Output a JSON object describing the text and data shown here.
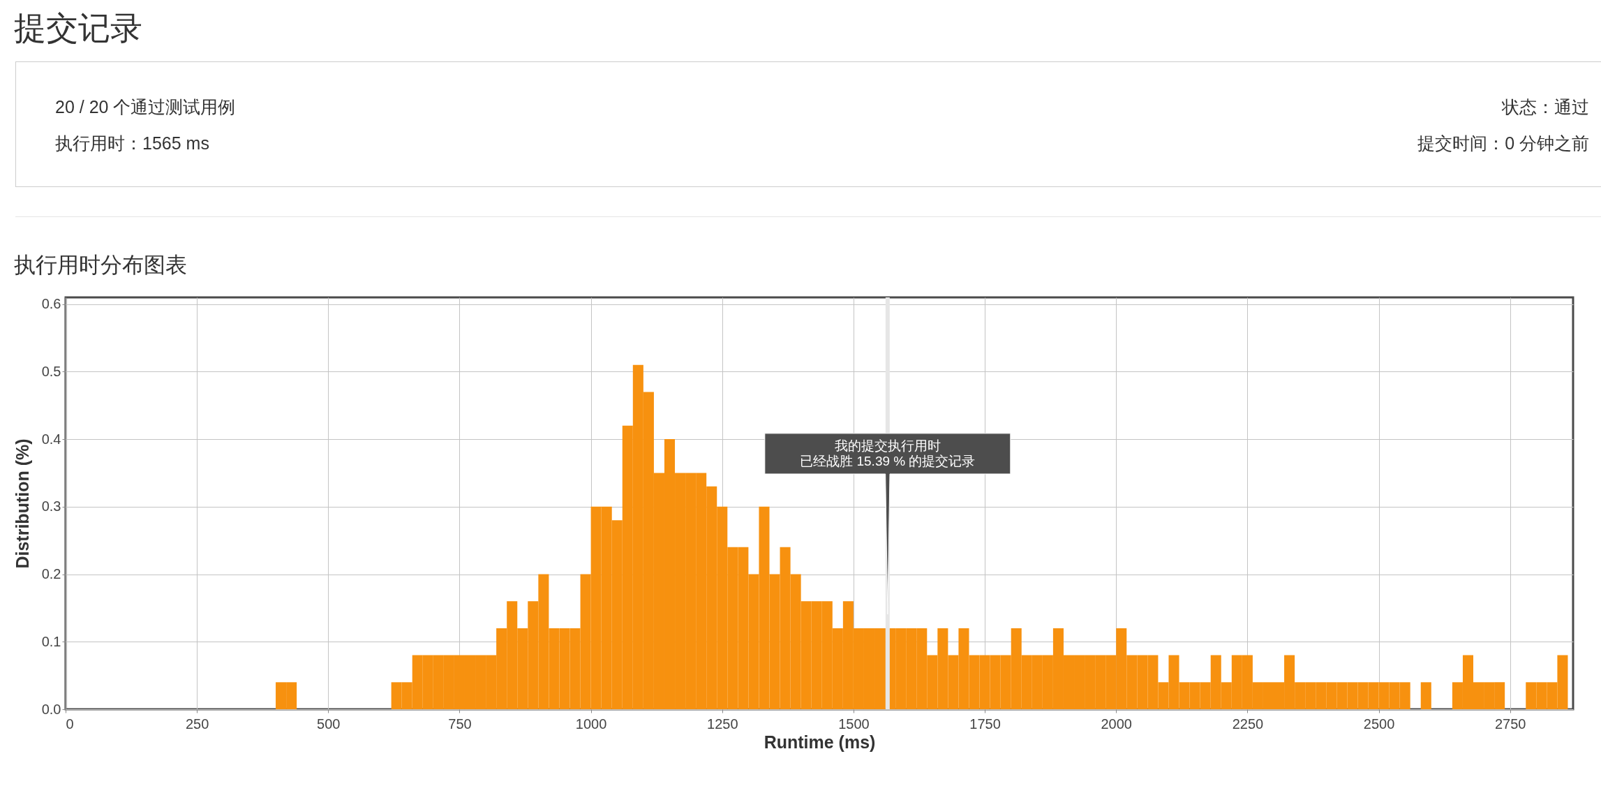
{
  "chart_data": {
    "type": "histogram",
    "title": "执行用时分布图表",
    "xlabel": "Runtime (ms)",
    "ylabel": "Distribution (%)",
    "color": "#f7910f",
    "bins": [
      400,
      420,
      440,
      460,
      480,
      500,
      520,
      540,
      560,
      580,
      600,
      620,
      640,
      660,
      680,
      700,
      720,
      740,
      760,
      780,
      800,
      820,
      840,
      860,
      880,
      900,
      920,
      940,
      960,
      980,
      1000,
      1020,
      1040,
      1060,
      1080,
      1100,
      1120,
      1140,
      1160,
      1180,
      1200,
      1220,
      1240,
      1260,
      1280,
      1300,
      1320,
      1340,
      1360,
      1380,
      1400,
      1420,
      1440,
      1460,
      1480,
      1500,
      1520,
      1540,
      1560,
      1580,
      1600,
      1620,
      1640,
      1660,
      1680,
      1700,
      1720,
      1740,
      1760,
      1780,
      1800,
      1820,
      1840,
      1860,
      1880,
      1900,
      1920,
      1940,
      1960,
      1980,
      2000,
      2020,
      2040,
      2060,
      2080,
      2100,
      2120,
      2140,
      2160,
      2180,
      2200,
      2220,
      2240,
      2260,
      2280,
      2300,
      2320,
      2340,
      2360,
      2380,
      2400,
      2420,
      2440,
      2460,
      2480,
      2500,
      2520,
      2540,
      2560,
      2580,
      2600,
      2620,
      2640,
      2660,
      2680,
      2700,
      2720,
      2740,
      2760,
      2780,
      2800,
      2820,
      2840,
      2860
    ],
    "values": [
      0.04,
      0.04,
      0,
      0,
      0,
      0,
      0,
      0,
      0,
      0,
      0,
      0.04,
      0.04,
      0.08,
      0.08,
      0.08,
      0.08,
      0.08,
      0.08,
      0.08,
      0.08,
      0.12,
      0.16,
      0.12,
      0.16,
      0.2,
      0.12,
      0.12,
      0.12,
      0.2,
      0.3,
      0.3,
      0.28,
      0.42,
      0.51,
      0.47,
      0.35,
      0.4,
      0.35,
      0.35,
      0.35,
      0.33,
      0.3,
      0.24,
      0.24,
      0.2,
      0.3,
      0.2,
      0.24,
      0.2,
      0.16,
      0.16,
      0.16,
      0.12,
      0.16,
      0.12,
      0.12,
      0.12,
      0.12,
      0.12,
      0.12,
      0.12,
      0.08,
      0.12,
      0.08,
      0.12,
      0.08,
      0.08,
      0.08,
      0.08,
      0.12,
      0.08,
      0.08,
      0.08,
      0.12,
      0.08,
      0.08,
      0.08,
      0.08,
      0.08,
      0.12,
      0.08,
      0.08,
      0.08,
      0.04,
      0.08,
      0.04,
      0.04,
      0.04,
      0.08,
      0.04,
      0.08,
      0.08,
      0.04,
      0.04,
      0.04,
      0.08,
      0.04,
      0.04,
      0.04,
      0.04,
      0.04,
      0.04,
      0.04,
      0.04,
      0.04,
      0.04,
      0.04,
      0,
      0.04,
      0,
      0,
      0.04,
      0.08,
      0.04,
      0.04,
      0.04,
      0,
      0,
      0.04,
      0.04,
      0.04,
      0.08
    ],
    "xlim": [
      0,
      2870
    ],
    "xticks": [
      0,
      250,
      500,
      750,
      1000,
      1250,
      1500,
      1750,
      2000,
      2250,
      2500,
      2750
    ],
    "ylim": [
      0,
      0.61
    ],
    "yticks": [
      {
        "value": 0,
        "label": "0.0"
      },
      0.1,
      0.2,
      0.3,
      0.4,
      0.5,
      0.6
    ],
    "grid": true,
    "ref_lines": [
      {
        "axis": "x",
        "value": 1565,
        "color": "#e6e6e6"
      }
    ],
    "annotations": [
      "提交记录",
      "20 / 20 个通过测试用例",
      "执行用时：1565 ms",
      "状态：通过",
      "提交时间：0 分钟之前",
      {
        "text": "我的提交执行用时",
        "x": 1565,
        "y": 0.39
      },
      {
        "text": "已经战胜 15.39 % 的提交记录",
        "x": 1565,
        "y": 0.367
      }
    ]
  }
}
